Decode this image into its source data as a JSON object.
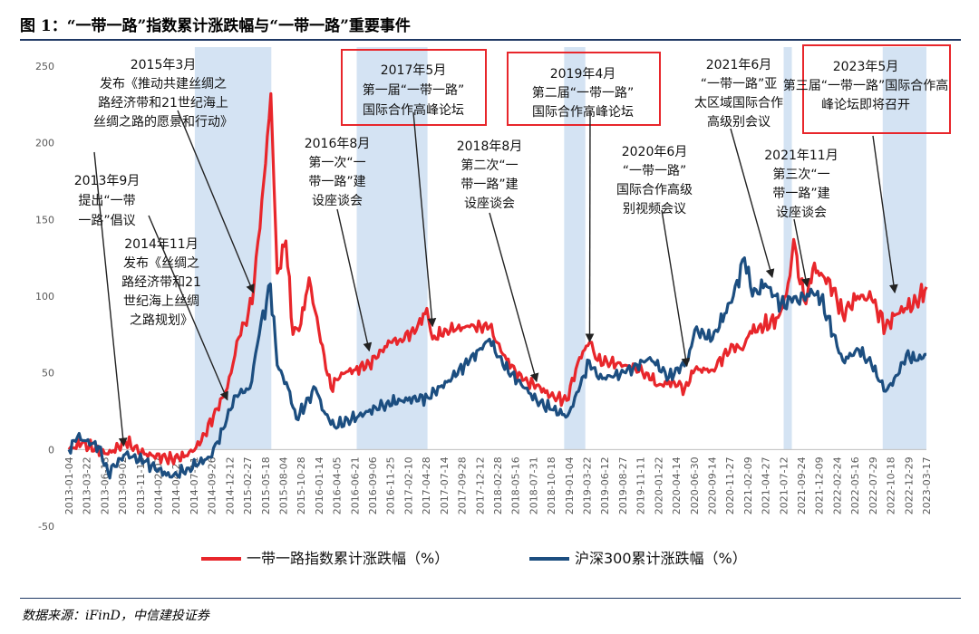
{
  "figure": {
    "title": "图 1：“一带一路”指数累计涨跌幅与“一带一路”重要事件",
    "source": "数据来源：iFinD，中信建投证券"
  },
  "chart_data": {
    "type": "line",
    "title": "“一带一路”指数累计涨跌幅与“一带一路”重要事件",
    "ylabel": "%",
    "ylim": [
      -50,
      250
    ],
    "yticks": [
      -50,
      0,
      50,
      100,
      150,
      200,
      250
    ],
    "x_start": "2013-01-04",
    "x_end": "2023-04-28",
    "x_tick_labels": [
      "2013-01-04",
      "2013-03-22",
      "2013-06-13",
      "2013-09-02",
      "2013-11-15",
      "2014-02-07",
      "2014-04-25",
      "2014-07-11",
      "2014-09-26",
      "2014-12-12",
      "2015-02-27",
      "2015-05-18",
      "2015-08-04",
      "2015-10-28",
      "2016-01-14",
      "2016-04-05",
      "2016-06-21",
      "2016-09-06",
      "2016-11-25",
      "2017-02-10",
      "2017-04-28",
      "2017-07-14",
      "2017-09-28",
      "2017-12-12",
      "2018-02-28",
      "2018-05-16",
      "2018-07-31",
      "2018-10-18",
      "2019-01-04",
      "2019-03-22",
      "2019-06-12",
      "2019-08-27",
      "2019-11-11",
      "2020-01-22",
      "2020-04-14",
      "2020-06-30",
      "2020-09-14",
      "2020-11-27",
      "2021-02-09",
      "2021-04-27",
      "2021-07-12",
      "2021-09-24",
      "2021-12-09",
      "2022-02-24",
      "2022-05-16",
      "2022-07-29",
      "2022-10-18",
      "2022-12-29",
      "2023-03-17"
    ],
    "series": [
      {
        "name": "一带一路指数累计涨跌幅（%）",
        "color": "#e8262b",
        "points": [
          [
            "2013-01-04",
            0
          ],
          [
            "2013-03-01",
            4
          ],
          [
            "2013-06-25",
            -3
          ],
          [
            "2013-09-10",
            5
          ],
          [
            "2013-12-01",
            -3
          ],
          [
            "2014-04-01",
            -6
          ],
          [
            "2014-06-01",
            -4
          ],
          [
            "2014-08-01",
            3
          ],
          [
            "2014-10-01",
            22
          ],
          [
            "2014-12-01",
            40
          ],
          [
            "2015-01-20",
            73
          ],
          [
            "2015-03-20",
            95
          ],
          [
            "2015-05-10",
            175
          ],
          [
            "2015-06-10",
            232
          ],
          [
            "2015-07-08",
            115
          ],
          [
            "2015-08-15",
            136
          ],
          [
            "2015-09-15",
            75
          ],
          [
            "2015-10-20",
            82
          ],
          [
            "2015-11-25",
            112
          ],
          [
            "2016-01-15",
            70
          ],
          [
            "2016-02-29",
            40
          ],
          [
            "2016-04-15",
            50
          ],
          [
            "2016-06-15",
            52
          ],
          [
            "2016-08-15",
            56
          ],
          [
            "2016-11-15",
            70
          ],
          [
            "2016-12-30",
            72
          ],
          [
            "2017-03-10",
            78
          ],
          [
            "2017-04-25",
            92
          ],
          [
            "2017-05-20",
            72
          ],
          [
            "2017-07-20",
            78
          ],
          [
            "2017-10-30",
            80
          ],
          [
            "2018-01-25",
            80
          ],
          [
            "2018-03-25",
            62
          ],
          [
            "2018-06-20",
            45
          ],
          [
            "2018-08-20",
            42
          ],
          [
            "2018-10-20",
            35
          ],
          [
            "2018-12-30",
            32
          ],
          [
            "2019-02-25",
            60
          ],
          [
            "2019-04-10",
            70
          ],
          [
            "2019-05-15",
            58
          ],
          [
            "2019-09-15",
            55
          ],
          [
            "2019-12-15",
            50
          ],
          [
            "2020-02-05",
            42
          ],
          [
            "2020-04-15",
            44
          ],
          [
            "2020-06-01",
            40
          ],
          [
            "2020-07-15",
            52
          ],
          [
            "2020-09-30",
            52
          ],
          [
            "2020-12-30",
            68
          ],
          [
            "2021-02-10",
            65
          ],
          [
            "2021-03-15",
            77
          ],
          [
            "2021-05-15",
            80
          ],
          [
            "2021-07-15",
            86
          ],
          [
            "2021-08-20",
            100
          ],
          [
            "2021-09-14",
            125
          ],
          [
            "2021-09-22",
            137
          ],
          [
            "2021-10-20",
            108
          ],
          [
            "2021-11-15",
            95
          ],
          [
            "2021-12-15",
            118
          ],
          [
            "2022-01-20",
            115
          ],
          [
            "2022-03-15",
            105
          ],
          [
            "2022-04-25",
            88
          ],
          [
            "2022-06-30",
            100
          ],
          [
            "2022-08-30",
            98
          ],
          [
            "2022-10-31",
            80
          ],
          [
            "2022-12-15",
            88
          ],
          [
            "2023-01-25",
            92
          ],
          [
            "2023-03-15",
            96
          ],
          [
            "2023-04-28",
            106
          ]
        ]
      },
      {
        "name": "沪深300累计涨跌幅（%）",
        "color": "#1c4e80",
        "points": [
          [
            "2013-01-04",
            0
          ],
          [
            "2013-02-10",
            8
          ],
          [
            "2013-05-15",
            2
          ],
          [
            "2013-06-25",
            -15
          ],
          [
            "2013-09-10",
            -3
          ],
          [
            "2013-12-01",
            -8
          ],
          [
            "2014-04-01",
            -18
          ],
          [
            "2014-06-15",
            -12
          ],
          [
            "2014-09-15",
            -5
          ],
          [
            "2014-11-20",
            15
          ],
          [
            "2014-12-31",
            35
          ],
          [
            "2015-03-10",
            40
          ],
          [
            "2015-04-20",
            75
          ],
          [
            "2015-06-08",
            108
          ],
          [
            "2015-07-08",
            55
          ],
          [
            "2015-08-25",
            40
          ],
          [
            "2015-09-30",
            20
          ],
          [
            "2015-12-23",
            40
          ],
          [
            "2016-01-28",
            25
          ],
          [
            "2016-03-15",
            15
          ],
          [
            "2016-06-30",
            22
          ],
          [
            "2016-10-30",
            30
          ],
          [
            "2016-12-30",
            32
          ],
          [
            "2017-04-28",
            34
          ],
          [
            "2017-07-30",
            45
          ],
          [
            "2017-10-30",
            58
          ],
          [
            "2018-01-25",
            72
          ],
          [
            "2018-03-25",
            55
          ],
          [
            "2018-06-30",
            40
          ],
          [
            "2018-08-20",
            32
          ],
          [
            "2018-10-25",
            26
          ],
          [
            "2019-01-03",
            22
          ],
          [
            "2019-02-20",
            38
          ],
          [
            "2019-04-08",
            58
          ],
          [
            "2019-05-20",
            46
          ],
          [
            "2019-09-15",
            50
          ],
          [
            "2019-12-31",
            60
          ],
          [
            "2020-03-23",
            47
          ],
          [
            "2020-06-15",
            58
          ],
          [
            "2020-07-15",
            78
          ],
          [
            "2020-09-30",
            72
          ],
          [
            "2020-12-31",
            100
          ],
          [
            "2021-02-18",
            125
          ],
          [
            "2021-03-25",
            100
          ],
          [
            "2021-05-20",
            108
          ],
          [
            "2021-07-28",
            95
          ],
          [
            "2021-09-15",
            96
          ],
          [
            "2021-12-15",
            102
          ],
          [
            "2022-01-20",
            98
          ],
          [
            "2022-03-15",
            75
          ],
          [
            "2022-04-26",
            58
          ],
          [
            "2022-07-05",
            65
          ],
          [
            "2022-08-30",
            55
          ],
          [
            "2022-10-31",
            38
          ],
          [
            "2022-12-30",
            50
          ],
          [
            "2023-01-30",
            62
          ],
          [
            "2023-03-15",
            58
          ],
          [
            "2023-04-28",
            62
          ]
        ]
      }
    ],
    "highlight_periods": [
      [
        "2014-07-11",
        "2015-06-12"
      ],
      [
        "2016-06-21",
        "2017-04-28"
      ],
      [
        "2018-12-19",
        "2019-03-22"
      ],
      [
        "2021-08-09",
        "2021-09-14"
      ],
      [
        "2022-10-18",
        "2023-04-28"
      ]
    ],
    "legend": {
      "position": "bottom-center",
      "entries": [
        "一带一路指数累计涨跌幅（%）",
        "沪深300累计涨跌幅（%）"
      ]
    },
    "annotations": [
      {
        "lines": [
          "2013年9月",
          "提出“一带",
          "一路”倡议"
        ],
        "target": [
          "2013-09-02",
          0
        ],
        "boxed": false
      },
      {
        "lines": [
          "2014年11月",
          "发布《丝绸之",
          "路经济带和21",
          "世纪海上丝绸",
          "之路规划》"
        ],
        "target": [
          "2014-12-01",
          30
        ],
        "boxed": false
      },
      {
        "lines": [
          "2015年3月",
          "发布《推动共建丝绸之",
          "路经济带和21世纪海上",
          "丝绸之路的愿景和行动》"
        ],
        "target": [
          "2015-03-25",
          100
        ],
        "boxed": false
      },
      {
        "lines": [
          "2016年8月",
          "第一次“一",
          "带一路”建",
          "设座谈会"
        ],
        "target": [
          "2016-08-15",
          62
        ],
        "boxed": false
      },
      {
        "lines": [
          "2017年5月",
          "第一届“一带一路”",
          "国际合作高峰论坛"
        ],
        "target": [
          "2017-05-20",
          78
        ],
        "boxed": true
      },
      {
        "lines": [
          "2018年8月",
          "第二次“一",
          "带一路”建",
          "设座谈会"
        ],
        "target": [
          "2018-08-20",
          42
        ],
        "boxed": false
      },
      {
        "lines": [
          "2019年4月",
          "第二届“一带一路”",
          "国际合作高峰论坛"
        ],
        "target": [
          "2019-04-10",
          68
        ],
        "boxed": true
      },
      {
        "lines": [
          "2020年6月",
          "“一带一路”",
          "国际合作高级",
          "别视频会议"
        ],
        "target": [
          "2020-06-10",
          52
        ],
        "boxed": false
      },
      {
        "lines": [
          "2021年6月",
          "“一带一路”亚",
          "太区域国际合作",
          "高级别会议"
        ],
        "target": [
          "2021-06-20",
          110
        ],
        "boxed": false
      },
      {
        "lines": [
          "2021年11月",
          "第三次“一",
          "带一路”建",
          "设座谈会"
        ],
        "target": [
          "2021-11-20",
          104
        ],
        "boxed": false
      },
      {
        "lines": [
          "2023年5月",
          "第三届“一带一路”国际合作高",
          "峰论坛即将召开"
        ],
        "target": [
          "2022-12-10",
          100
        ],
        "boxed": true
      }
    ]
  }
}
